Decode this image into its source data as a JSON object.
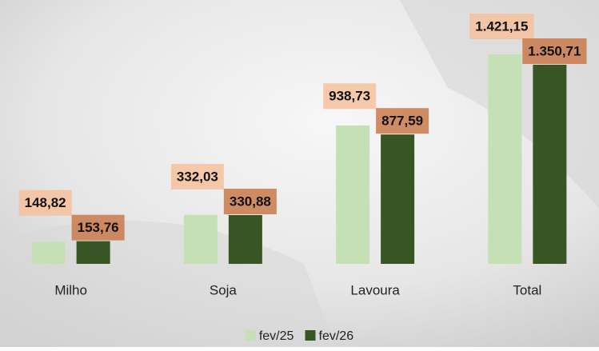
{
  "chart_data": {
    "type": "bar",
    "categories": [
      "Milho",
      "Soja",
      "Lavoura",
      "Total"
    ],
    "series": [
      {
        "name": "fev/25",
        "color": "#c5e0b4",
        "label_color": "#f4c19c",
        "values": [
          148.82,
          332.03,
          938.73,
          1421.15
        ],
        "value_labels": [
          "148,82",
          "332,03",
          "938,73",
          "1.421,15"
        ]
      },
      {
        "name": "fev/26",
        "color": "#375623",
        "label_color": "#c9794a",
        "values": [
          153.76,
          330.88,
          877.59,
          1350.71
        ],
        "value_labels": [
          "153,76",
          "330,88",
          "877,59",
          "1.350,71"
        ]
      }
    ],
    "legend": "bottom"
  }
}
